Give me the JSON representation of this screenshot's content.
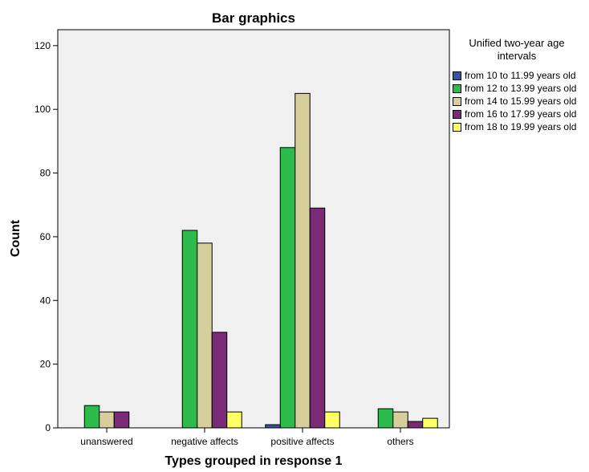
{
  "chart_data": {
    "type": "bar",
    "title": "Bar graphics",
    "xlabel": "Types grouped in response 1",
    "ylabel": "Count",
    "ylim": [
      0,
      125
    ],
    "yticks": [
      0,
      20,
      40,
      60,
      80,
      100,
      120
    ],
    "categories": [
      "unanswered",
      "negative affects",
      "positive affects",
      "others"
    ],
    "legend_title": "Unified two-year age intervals",
    "legend_position": "right",
    "grid": false,
    "series": [
      {
        "name": "from 10 to 11.99 years old",
        "color": "#3A52A3",
        "values": [
          null,
          null,
          1,
          null
        ]
      },
      {
        "name": "from 12 to 13.99 years old",
        "color": "#2DBB4B",
        "values": [
          7,
          62,
          88,
          6
        ]
      },
      {
        "name": "from 14 to 15.99 years old",
        "color": "#D6CE9B",
        "values": [
          5,
          58,
          105,
          5
        ]
      },
      {
        "name": "from 16 to 17.99 years old",
        "color": "#7B2A78",
        "values": [
          5,
          30,
          69,
          2
        ]
      },
      {
        "name": "from 18 to 19.99 years old",
        "color": "#FFFF66",
        "values": [
          null,
          5,
          5,
          3
        ]
      }
    ],
    "plot_background": "#F0F0F0"
  }
}
